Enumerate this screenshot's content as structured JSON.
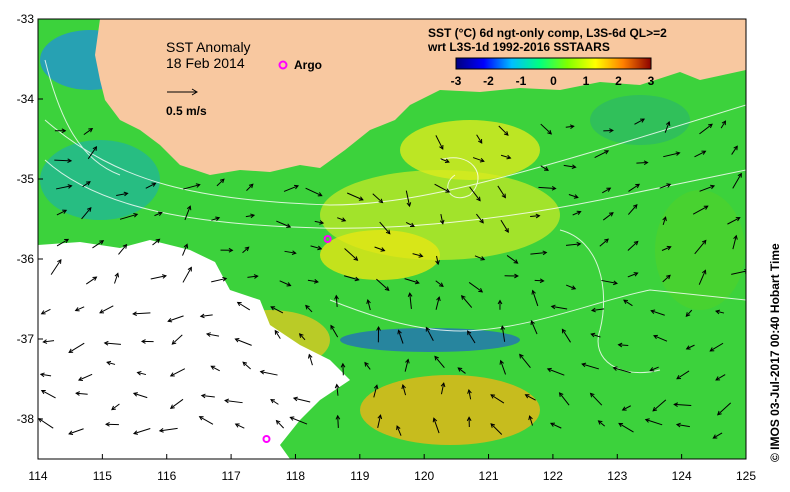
{
  "map": {
    "title": "SST Anomaly",
    "date": "18 Feb 2014",
    "argo_label": "Argo",
    "velocity_label": "0.5 m/s",
    "product_line1": "SST (°C) 6d ngt-only comp, L3S-6d QL>=2",
    "product_line2": "wrt L3S-1d 1992-2016 SSTAARS",
    "credit": "© IMOS 03-Jul-2017 00:40 Hobart Time",
    "colors": {
      "land": "#F8C8A0",
      "ocean_base": "#3CD23C",
      "no_data": "#ffffff",
      "argo_marker": "#FF00FF"
    }
  },
  "axes": {
    "x_ticks": [
      114,
      115,
      116,
      117,
      118,
      119,
      120,
      121,
      122,
      123,
      124,
      125
    ],
    "y_ticks": [
      -33,
      -34,
      -35,
      -36,
      -37,
      -38
    ],
    "x_range": [
      114,
      125
    ],
    "y_range": [
      -38.5,
      -33
    ]
  },
  "colorbar": {
    "ticks": [
      "-3",
      "-2",
      "-1",
      "0",
      "1",
      "2",
      "3"
    ],
    "range": [
      -3,
      3
    ],
    "stops": [
      "#000080",
      "#0000FF",
      "#00BFFF",
      "#00FF80",
      "#80FF00",
      "#FFFF00",
      "#FF8000",
      "#8B0000"
    ]
  },
  "argo_floats": [
    {
      "lon": 118.5,
      "lat": -35.75
    },
    {
      "lon": 117.55,
      "lat": -38.25
    }
  ]
}
